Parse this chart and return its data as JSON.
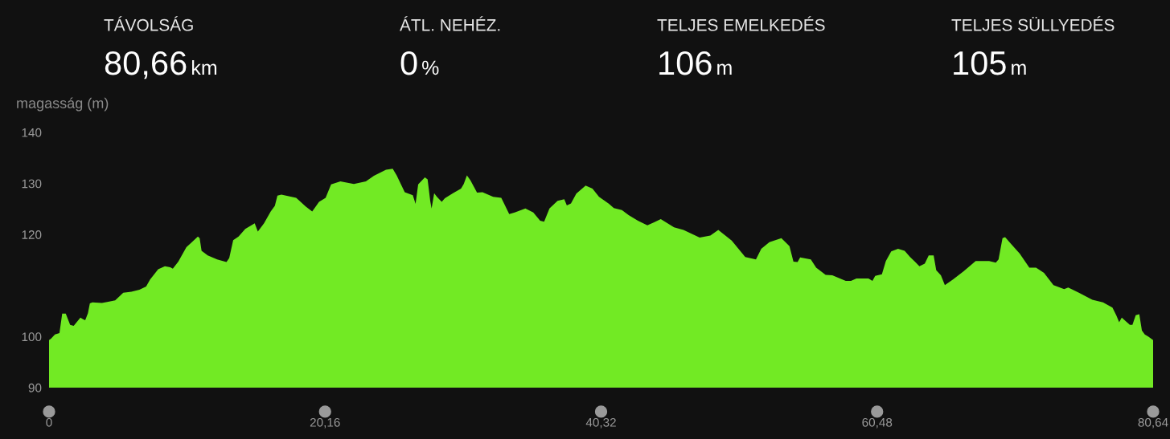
{
  "chart_data": {
    "type": "area",
    "ylabel": "magasság (m)",
    "annotations": [
      "TÁVOLSÁG",
      "80,66",
      "km",
      "ÁTL. NEHÉZ.",
      "0",
      "%",
      "TELJES EMELKEDÉS",
      "106",
      "m",
      "TELJES SÜLLYEDÉS",
      "105",
      "m"
    ],
    "x": [
      0,
      0.14,
      0.43,
      0.76,
      0.96,
      1.22,
      1.54,
      1.8,
      2.29,
      2.48,
      2.64,
      2.84,
      2.98,
      3.17,
      3.86,
      4.25,
      4.83,
      5.42,
      6.01,
      6.6,
      7.09,
      7.38,
      7.97,
      8.46,
      8.85,
      9.04,
      9.44,
      10.03,
      10.51,
      10.87,
      11.0,
      11.14,
      11.59,
      12.28,
      12.96,
      13.16,
      13.45,
      13.84,
      14.33,
      15.02,
      15.25,
      15.7,
      16.19,
      16.49,
      16.68,
      16.97,
      18.05,
      18.74,
      19.22,
      19.72,
      20.2,
      20.6,
      21.28,
      22.26,
      23.14,
      23.73,
      24.61,
      25.1,
      25.39,
      25.98,
      26.57,
      26.77,
      26.96,
      27.45,
      27.65,
      27.84,
      27.94,
      28.13,
      28.33,
      28.68,
      28.91,
      29.5,
      30.09,
      30.29,
      30.52,
      30.78,
      31.26,
      31.66,
      32.44,
      33.03,
      33.61,
      34.01,
      34.79,
      35.37,
      35.87,
      36.16,
      36.55,
      37.14,
      37.63,
      37.82,
      38.12,
      38.51,
      39.19,
      39.69,
      40.17,
      40.86,
      41.25,
      41.84,
      42.33,
      43.01,
      43.7,
      44.19,
      44.68,
      45.65,
      46.34,
      47.52,
      48.3,
      48.88,
      49.86,
      50.85,
      51.63,
      52.02,
      52.61,
      53.49,
      54.08,
      54.37,
      54.67,
      54.86,
      55.64,
      56.03,
      56.72,
      57.21,
      58.19,
      58.57,
      58.97,
      59.85,
      60.14,
      60.34,
      60.83,
      61.12,
      61.51,
      62.01,
      62.49,
      62.89,
      63.27,
      63.57,
      63.96,
      64.25,
      64.61,
      64.8,
      65.14,
      65.43,
      66.02,
      66.8,
      67.68,
      68.66,
      69.15,
      69.35,
      69.64,
      69.83,
      70.32,
      70.91,
      71.6,
      72.09,
      72.67,
      73.36,
      74.14,
      74.44,
      75.22,
      76.2,
      76.98,
      77.67,
      77.96,
      78.16,
      78.35,
      78.94,
      79.13,
      79.37,
      79.63,
      79.82,
      80.03,
      80.3,
      80.64
    ],
    "series": [
      {
        "color": "#72ea24",
        "values": [
          99.3,
          99.6,
          100.4,
          100.7,
          104.5,
          104.5,
          102.3,
          102.1,
          103.7,
          103.4,
          103.2,
          104.6,
          106.5,
          106.7,
          106.6,
          106.8,
          107.1,
          108.6,
          108.8,
          109.2,
          109.8,
          111.2,
          113.2,
          113.8,
          113.6,
          113.3,
          114.7,
          117.5,
          118.7,
          119.6,
          119.3,
          116.8,
          115.9,
          115.1,
          114.6,
          115.4,
          118.9,
          119.6,
          121.1,
          122.2,
          120.6,
          122.2,
          124.5,
          125.6,
          127.6,
          127.8,
          127.2,
          125.5,
          124.5,
          126.4,
          127.2,
          129.8,
          130.4,
          129.9,
          130.4,
          131.5,
          132.7,
          132.9,
          131.6,
          128.3,
          127.7,
          126.0,
          129.8,
          131.2,
          130.8,
          126.6,
          125.1,
          128.1,
          127.4,
          126.4,
          127.1,
          128.1,
          129.0,
          129.9,
          131.6,
          130.6,
          128.2,
          128.3,
          127.4,
          127.2,
          124.0,
          124.3,
          125.1,
          124.3,
          122.7,
          122.5,
          125.1,
          126.6,
          126.9,
          125.7,
          126.1,
          128.0,
          129.6,
          129.0,
          127.4,
          126.1,
          125.2,
          124.8,
          123.8,
          122.7,
          121.8,
          122.4,
          123.0,
          121.4,
          120.9,
          119.4,
          119.8,
          120.9,
          118.8,
          115.6,
          115.1,
          117.2,
          118.5,
          119.3,
          117.7,
          114.7,
          114.6,
          115.5,
          115.1,
          113.5,
          112.1,
          112.0,
          110.9,
          110.9,
          111.4,
          111.4,
          110.9,
          111.9,
          112.2,
          114.8,
          116.7,
          117.2,
          116.8,
          115.6,
          114.6,
          113.8,
          114.3,
          115.9,
          115.9,
          113.0,
          112.0,
          110.1,
          111.2,
          112.8,
          114.8,
          114.8,
          114.5,
          115.1,
          119.3,
          119.5,
          118.0,
          116.2,
          113.5,
          113.5,
          112.5,
          110.1,
          109.3,
          109.6,
          108.6,
          107.2,
          106.7,
          105.7,
          104.1,
          102.8,
          103.7,
          102.3,
          102.3,
          104.2,
          104.4,
          101.2,
          100.4,
          100.0,
          99.3
        ]
      }
    ],
    "xlim": [
      0,
      80.64
    ],
    "xticks": [
      0,
      {
        "value": 20.16,
        "label": "20,16"
      },
      {
        "value": 40.32,
        "label": "40,32"
      },
      {
        "value": 60.48,
        "label": "60,48"
      },
      {
        "value": 80.64,
        "label": "80,64"
      }
    ],
    "ylim": [
      90,
      140
    ],
    "yticks": [
      90,
      100,
      120,
      130,
      140
    ]
  }
}
